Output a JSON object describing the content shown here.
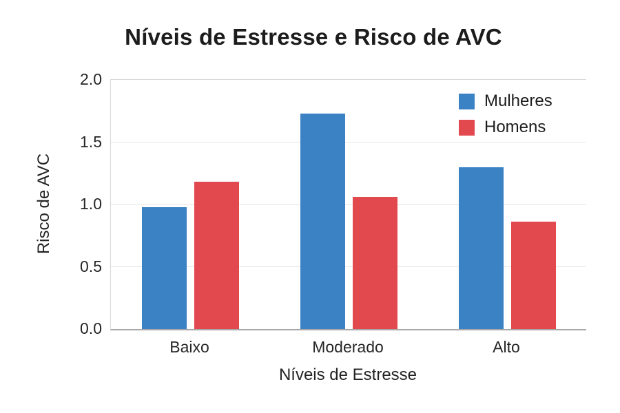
{
  "chart_data": {
    "type": "bar",
    "title": "Níveis de Estresse e Risco de AVC",
    "xlabel": "Níveis de Estresse",
    "ylabel": "Risco de AVC",
    "categories": [
      "Baixo",
      "Moderado",
      "Alto"
    ],
    "series": [
      {
        "name": "Mulheres",
        "color": "#3b82c5",
        "values": [
          0.98,
          1.73,
          1.3
        ]
      },
      {
        "name": "Homens",
        "color": "#e2494f",
        "values": [
          1.18,
          1.06,
          0.86
        ]
      }
    ],
    "ylim": [
      0,
      2.0
    ],
    "yticks": [
      {
        "value": 0.0,
        "label": "0.0"
      },
      {
        "value": 0.5,
        "label": "0.5"
      },
      {
        "value": 1.0,
        "label": "1.0"
      },
      {
        "value": 1.5,
        "label": "1.5"
      },
      {
        "value": 2.0,
        "label": "2.0"
      }
    ],
    "grid": true,
    "legend_position": "top-right",
    "style": {
      "grid_color": "#e5e5e5",
      "box_border_color": "#d9d9d9",
      "axis_line_color": "#a8a8a8",
      "text_color": "#1c1c1c"
    }
  }
}
